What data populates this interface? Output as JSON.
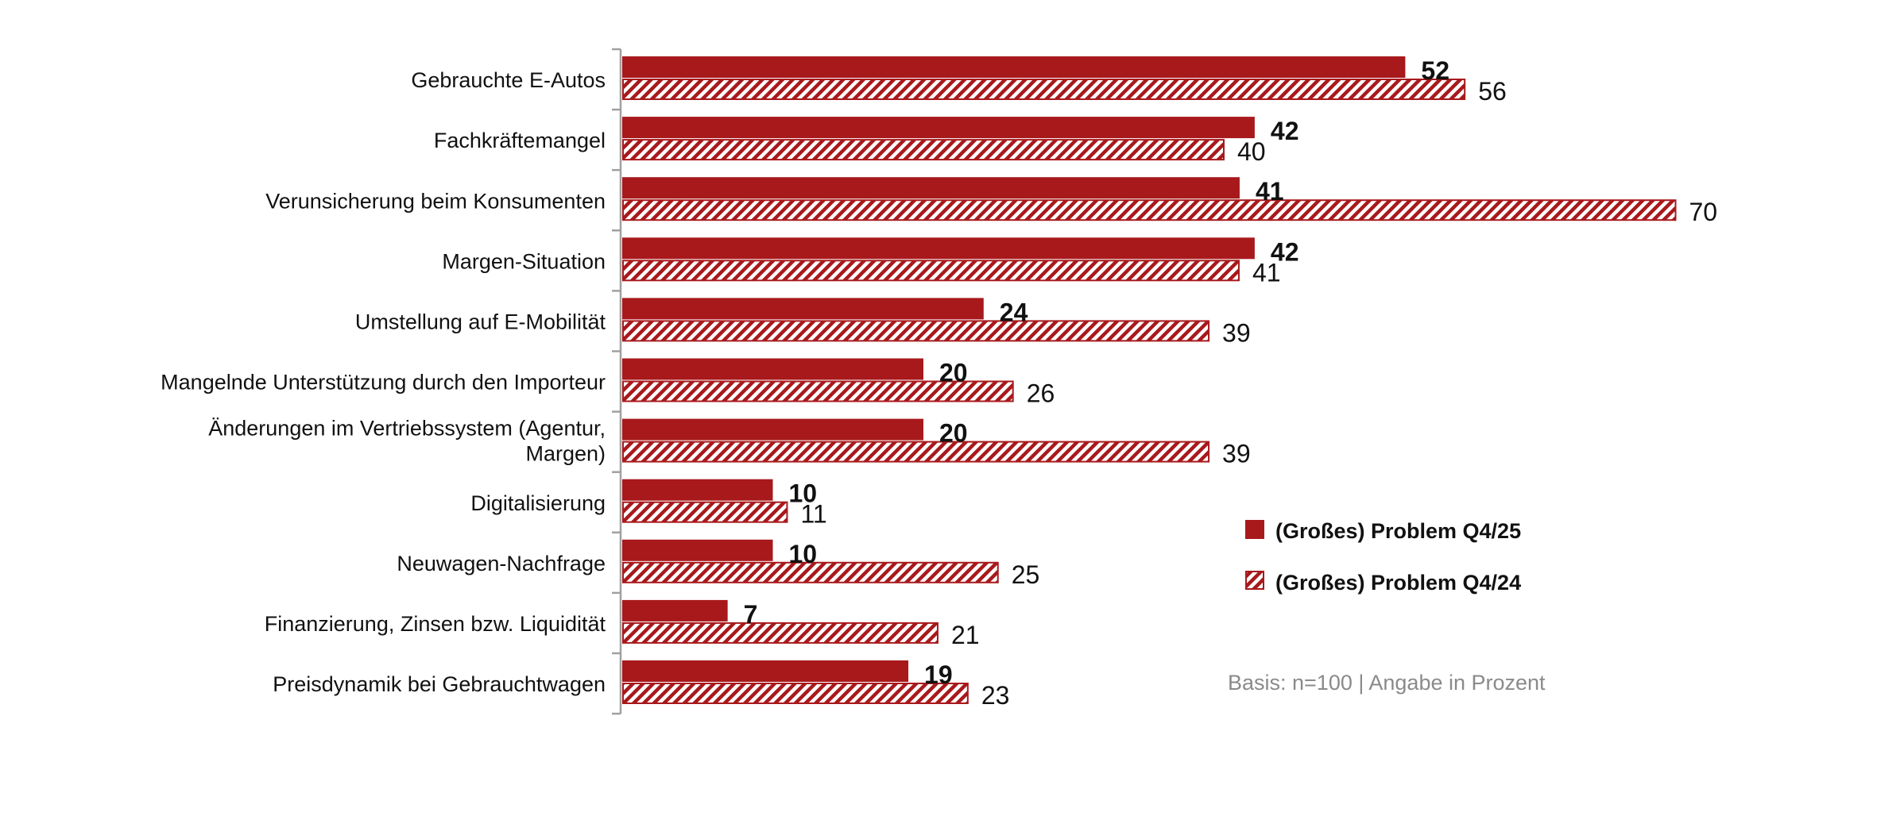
{
  "chart_data": {
    "type": "bar",
    "orientation": "horizontal",
    "categories": [
      [
        "Gebrauchte E-Autos"
      ],
      [
        "Fachkräftemangel"
      ],
      [
        "Verunsicherung beim Konsumenten"
      ],
      [
        "Margen-Situation"
      ],
      [
        "Umstellung auf E-Mobilität"
      ],
      [
        "Mangelnde Unterstützung durch den Importeur"
      ],
      [
        "Änderungen im Vertriebssystem (Agentur,",
        "Margen)"
      ],
      [
        "Digitalisierung"
      ],
      [
        "Neuwagen-Nachfrage"
      ],
      [
        "Finanzierung, Zinsen bzw. Liquidität"
      ],
      [
        "Preisdynamik bei Gebrauchtwagen"
      ]
    ],
    "series": [
      {
        "name": "(Großes) Problem Q4/25",
        "style": "solid",
        "values": [
          52,
          42,
          41,
          42,
          24,
          20,
          20,
          10,
          10,
          7,
          19
        ]
      },
      {
        "name": "(Großes) Problem Q4/24",
        "style": "hatched",
        "values": [
          56,
          40,
          70,
          41,
          39,
          26,
          39,
          11,
          25,
          21,
          23
        ]
      }
    ],
    "xlim": [
      0,
      70
    ],
    "legend": "right",
    "note": "Basis: n=100 | Angabe in Prozent",
    "grid": false
  },
  "colors": {
    "bar": "#a8191c",
    "axis": "#a0a0a0"
  }
}
